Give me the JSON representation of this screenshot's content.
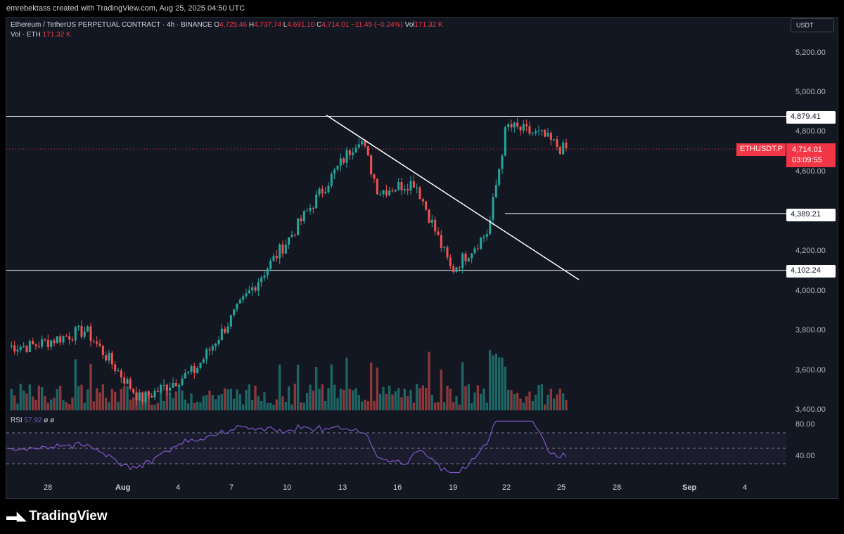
{
  "header": {
    "text": "emrebektass created with TradingView.com, Aug 25, 2025 04:50 UTC"
  },
  "legend": {
    "symbol": "Ethereum / TetherUS PERPETUAL CONTRACT · 4h · BINANCE",
    "o_label": "O",
    "o": "4,725.46",
    "h_label": "H",
    "h": "4,737.74",
    "l_label": "L",
    "l": "4,691.10",
    "c_label": "C",
    "c": "4,714.01",
    "change": "−11.45 (−0.24%)",
    "vol_label": "Vol",
    "vol": "171.32 K"
  },
  "volume_legend": {
    "label": "Vol · ETH",
    "value": "171.32 K"
  },
  "rsi_legend": {
    "label": "RSI",
    "value": "57.92",
    "extra": "ø ø"
  },
  "currency": "USDT",
  "price_axis": [
    "5,200.00",
    "5,000.00",
    "4,800.00",
    "4,600.00",
    "4,200.00",
    "4,000.00",
    "3,800.00",
    "3,600.00",
    "3,400.00"
  ],
  "rsi_axis": [
    "80.00",
    "40.00"
  ],
  "levels": [
    "4,879.41",
    "4,389.21",
    "4,102.24"
  ],
  "last_price": {
    "symbol": "ETHUSDT.P",
    "price": "4,714.01",
    "countdown": "03:09:55"
  },
  "date_axis": [
    "28",
    "Aug",
    "4",
    "7",
    "10",
    "13",
    "16",
    "19",
    "22",
    "25",
    "28",
    "Sep",
    "4"
  ],
  "brand": "TradingView",
  "colors": {
    "up": "#26a69a",
    "down": "#ef5350",
    "rsi": "#7e57c2",
    "background": "#131722"
  },
  "chart_data": {
    "type": "candlestick",
    "symbol": "ETHUSDT.P",
    "timeframe": "4h",
    "ylim": [
      3400,
      5300
    ],
    "horizontal_levels": [
      4879.41,
      4389.21,
      4102.24
    ],
    "trendline": {
      "from": [
        "2025-08-13",
        4880
      ],
      "to": [
        "2025-08-25",
        4100
      ]
    },
    "key_points": [
      {
        "date": "2025-07-27",
        "close": 3720
      },
      {
        "date": "2025-07-30",
        "close": 3800
      },
      {
        "date": "2025-08-02",
        "close": 3450
      },
      {
        "date": "2025-08-05",
        "close": 3600
      },
      {
        "date": "2025-08-08",
        "close": 4000
      },
      {
        "date": "2025-08-10",
        "close": 4250
      },
      {
        "date": "2025-08-13",
        "close": 4650
      },
      {
        "date": "2025-08-14",
        "close": 4780
      },
      {
        "date": "2025-08-15",
        "close": 4500
      },
      {
        "date": "2025-08-17",
        "close": 4550
      },
      {
        "date": "2025-08-19",
        "close": 4100
      },
      {
        "date": "2025-08-21",
        "close": 4300
      },
      {
        "date": "2025-08-22",
        "close": 4830
      },
      {
        "date": "2025-08-24",
        "close": 4780
      },
      {
        "date": "2025-08-25",
        "close": 4714.01
      }
    ],
    "rsi_last": 57.92
  }
}
